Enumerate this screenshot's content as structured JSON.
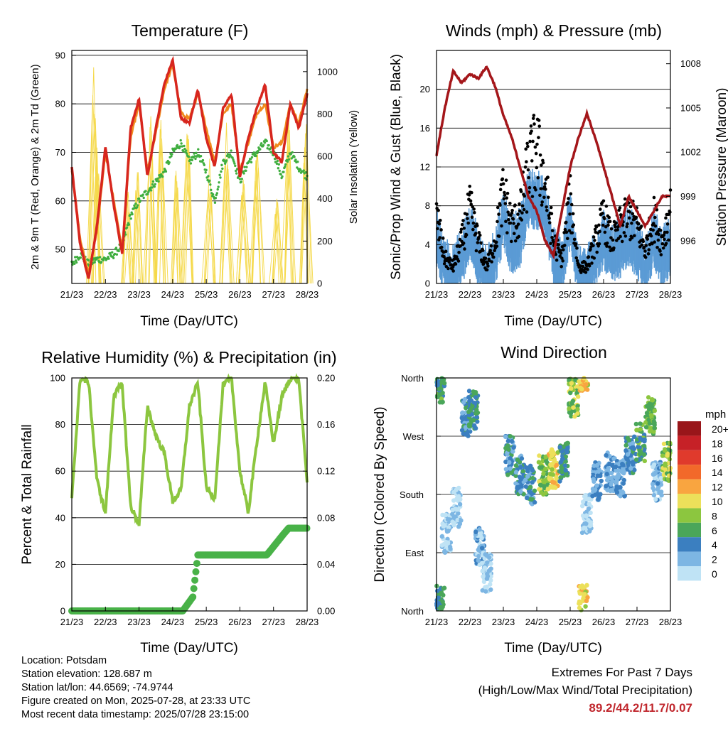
{
  "colors": {
    "temp_red": "#d7261e",
    "temp_orange": "#f08a1c",
    "dewpoint_green": "#3fae3f",
    "solar_yellow": "#f5d94a",
    "wind_blue": "#5b9bd5",
    "gust_black": "#000000",
    "pressure_maroon": "#a4161a",
    "rh_green": "#8cc63f",
    "rain_green": "#49b248",
    "extremes_red": "#c0272d"
  },
  "x_ticks": [
    "21/23",
    "22/23",
    "23/23",
    "24/23",
    "25/23",
    "26/23",
    "27/23",
    "28/23"
  ],
  "chart_data": [
    {
      "id": "temperature",
      "type": "line",
      "title": "Temperature (F)",
      "xlabel": "Time (Day/UTC)",
      "ylabel": "2m & 9m T (Red, Orange) & 2m Td (Green)",
      "y2label": "Solar Insolation (Yellow)",
      "ylim": [
        43,
        91
      ],
      "y_ticks": [
        50,
        60,
        70,
        80,
        90
      ],
      "y2lim": [
        0,
        1100
      ],
      "y2_ticks": [
        0,
        200,
        400,
        600,
        800,
        1000
      ],
      "grid": true,
      "x_days": [
        0,
        0.25,
        0.5,
        0.75,
        1,
        1.25,
        1.5,
        1.75,
        2,
        2.25,
        2.5,
        2.75,
        3,
        3.25,
        3.5,
        3.75,
        4,
        4.25,
        4.5,
        4.75,
        5,
        5.25,
        5.5,
        5.75,
        6,
        6.25,
        6.5,
        6.75,
        7
      ],
      "series": [
        {
          "key": "t9m",
          "values": [
            66.5,
            52,
            45,
            54,
            70,
            60,
            50,
            73,
            80,
            66,
            74,
            83,
            88,
            78,
            77,
            82,
            75,
            68,
            78,
            80,
            66,
            72,
            78,
            80,
            71,
            72,
            80,
            76,
            83
          ]
        },
        {
          "key": "t2m",
          "values": [
            67,
            51,
            44,
            55,
            71,
            59,
            49,
            75,
            81,
            65,
            75,
            84,
            89,
            77,
            76,
            83,
            73,
            67,
            79,
            82,
            65,
            73,
            79,
            84,
            70,
            68,
            80,
            75,
            82
          ]
        },
        {
          "key": "td2m",
          "values": [
            47,
            49,
            47,
            48,
            48,
            49,
            51,
            57,
            60,
            62,
            64,
            66,
            70,
            72,
            68,
            70,
            66,
            60,
            68,
            70,
            64,
            68,
            70,
            72,
            70,
            65,
            70,
            67,
            65
          ]
        }
      ],
      "solar_peaks": [
        {
          "day": 0.65,
          "value": 1090
        },
        {
          "day": 0.75,
          "value": 700
        },
        {
          "day": 1.65,
          "value": 500
        },
        {
          "day": 1.95,
          "value": 600
        },
        {
          "day": 2.35,
          "value": 870
        },
        {
          "day": 2.65,
          "value": 880
        },
        {
          "day": 3.1,
          "value": 620
        },
        {
          "day": 3.45,
          "value": 870
        },
        {
          "day": 4.1,
          "value": 600
        },
        {
          "day": 4.6,
          "value": 760
        },
        {
          "day": 5.1,
          "value": 600
        },
        {
          "day": 5.5,
          "value": 750
        },
        {
          "day": 6.1,
          "value": 470
        },
        {
          "day": 6.45,
          "value": 880
        },
        {
          "day": 6.95,
          "value": 860
        }
      ]
    },
    {
      "id": "winds",
      "type": "line",
      "title": "Winds (mph) & Pressure (mb)",
      "xlabel": "Time (Day/UTC)",
      "ylabel": "Sonic/Prop Wind & Gust (Blue, Black)",
      "y2label": "Station Pressure (Maroon)",
      "ylim": [
        0,
        24
      ],
      "y_ticks": [
        0,
        4,
        8,
        12,
        16,
        20
      ],
      "y2lim": [
        993.1,
        1008.9
      ],
      "y2_ticks": [
        996,
        999,
        1002,
        1005,
        1008
      ],
      "grid": true,
      "x_days": [
        0,
        0.25,
        0.5,
        0.75,
        1,
        1.25,
        1.5,
        1.75,
        2,
        2.25,
        2.5,
        2.75,
        3,
        3.25,
        3.5,
        3.75,
        4,
        4.25,
        4.5,
        4.75,
        5,
        5.25,
        5.5,
        5.75,
        6,
        6.25,
        6.5,
        6.75,
        7
      ],
      "wind_values": [
        5,
        2,
        1,
        3,
        6,
        3,
        1,
        3,
        7,
        4,
        5,
        9,
        9,
        8,
        3,
        2,
        7,
        1,
        1,
        3,
        5,
        3,
        4,
        5,
        4,
        2,
        5,
        3,
        4
      ],
      "gust_values": [
        8,
        3,
        2,
        5,
        9,
        5,
        2,
        5,
        11,
        7,
        8,
        14,
        16,
        12,
        5,
        3,
        10,
        2,
        2,
        5,
        8,
        5,
        7,
        8,
        7,
        4,
        8,
        5,
        9
      ],
      "pressure_values": [
        1001.8,
        1005,
        1007.5,
        1006.7,
        1007.3,
        1007,
        1007.8,
        1006.5,
        1004.5,
        1003,
        1001,
        999,
        998,
        996,
        995,
        998,
        1001,
        1003,
        1004.6,
        1003,
        1001,
        999,
        997,
        999,
        998,
        997,
        998,
        999,
        999
      ]
    },
    {
      "id": "humidity",
      "type": "line",
      "title": "Relative Humidity (%) & Precipitation (in)",
      "xlabel": "Time (Day/UTC)",
      "ylabel": "Percent & Total Rainfall",
      "ylim": [
        0,
        100
      ],
      "y_ticks": [
        0,
        20,
        40,
        60,
        80,
        100
      ],
      "y2lim": [
        0,
        0.2
      ],
      "y2_ticks": [
        "0.00",
        "0.04",
        "0.08",
        "0.12",
        "0.16",
        "0.20"
      ],
      "grid": true,
      "x_days": [
        0,
        0.25,
        0.5,
        0.75,
        1,
        1.25,
        1.5,
        1.75,
        2,
        2.25,
        2.5,
        2.75,
        3,
        3.25,
        3.5,
        3.75,
        4,
        4.25,
        4.5,
        4.75,
        5,
        5.25,
        5.5,
        5.75,
        6,
        6.25,
        6.5,
        6.75,
        7
      ],
      "rh_values": [
        49,
        100,
        98,
        56,
        42,
        93,
        97,
        45,
        37,
        88,
        75,
        68,
        47,
        52,
        88,
        98,
        53,
        48,
        97,
        100,
        60,
        42,
        72,
        98,
        72,
        92,
        100,
        100,
        55
      ],
      "rain_x": [
        0,
        3.3,
        3.6,
        3.75,
        4.4,
        4.7,
        5.8,
        6.3,
        6.45,
        7
      ],
      "rain_values": [
        0,
        0,
        0.012,
        0.048,
        0.048,
        0.048,
        0.048,
        0.066,
        0.071,
        0.071
      ]
    },
    {
      "id": "direction",
      "type": "scatter",
      "title": "Wind Direction",
      "xlabel": "Time (Day/UTC)",
      "ylabel": "Direction (Colored By Speed)",
      "y_ticks": [
        "North",
        "East",
        "South",
        "West",
        "North"
      ],
      "grid": true,
      "legend_title": "mph",
      "legend_labels": [
        "20+",
        "18",
        "16",
        "14",
        "12",
        "10",
        "8",
        "6",
        "4",
        "2",
        "0"
      ],
      "legend_colors": [
        "#99161a",
        "#c62127",
        "#e03a2c",
        "#f2692a",
        "#f9a540",
        "#ece05a",
        "#8cc63f",
        "#4aa65a",
        "#3b7fc0",
        "#7db6e3",
        "#bfe3f5"
      ],
      "legend_placement": "right",
      "clusters": [
        {
          "day": 0.05,
          "dir": 350,
          "speed": 6
        },
        {
          "day": 0.1,
          "dir": 10,
          "speed": 5
        },
        {
          "day": 0.3,
          "dir": 120,
          "speed": 1
        },
        {
          "day": 0.6,
          "dir": 160,
          "speed": 1
        },
        {
          "day": 0.9,
          "dir": 300,
          "speed": 4
        },
        {
          "day": 1.1,
          "dir": 310,
          "speed": 5
        },
        {
          "day": 1.3,
          "dir": 100,
          "speed": 2
        },
        {
          "day": 1.5,
          "dir": 60,
          "speed": 1
        },
        {
          "day": 2.2,
          "dir": 240,
          "speed": 4
        },
        {
          "day": 2.5,
          "dir": 210,
          "speed": 4
        },
        {
          "day": 2.8,
          "dir": 195,
          "speed": 4
        },
        {
          "day": 3.2,
          "dir": 210,
          "speed": 8
        },
        {
          "day": 3.5,
          "dir": 220,
          "speed": 10
        },
        {
          "day": 3.8,
          "dir": 230,
          "speed": 5
        },
        {
          "day": 4.1,
          "dir": 330,
          "speed": 8
        },
        {
          "day": 4.4,
          "dir": 10,
          "speed": 10
        },
        {
          "day": 4.5,
          "dir": 150,
          "speed": 1
        },
        {
          "day": 4.8,
          "dir": 200,
          "speed": 3
        },
        {
          "day": 5.2,
          "dir": 215,
          "speed": 3
        },
        {
          "day": 5.5,
          "dir": 205,
          "speed": 3
        },
        {
          "day": 5.8,
          "dir": 240,
          "speed": 4
        },
        {
          "day": 6.1,
          "dir": 260,
          "speed": 6
        },
        {
          "day": 6.4,
          "dir": 300,
          "speed": 7
        },
        {
          "day": 6.6,
          "dir": 200,
          "speed": 2
        },
        {
          "day": 6.9,
          "dir": 230,
          "speed": 8
        }
      ]
    }
  ],
  "info": {
    "location": "Location: Potsdam",
    "elevation": "Station elevation: 128.687 m",
    "latlon": "Station lat/lon: 44.6569; -74.9744",
    "created": "Figure created on Mon, 2025-07-28, at 23:33 UTC",
    "recent": "Most recent data timestamp: 2025/07/28 23:15:00"
  },
  "extremes": {
    "line1": "Extremes For Past 7 Days",
    "line2": "(High/Low/Max Wind/Total Precipitation)",
    "values": "89.2/44.2/11.7/0.07"
  }
}
